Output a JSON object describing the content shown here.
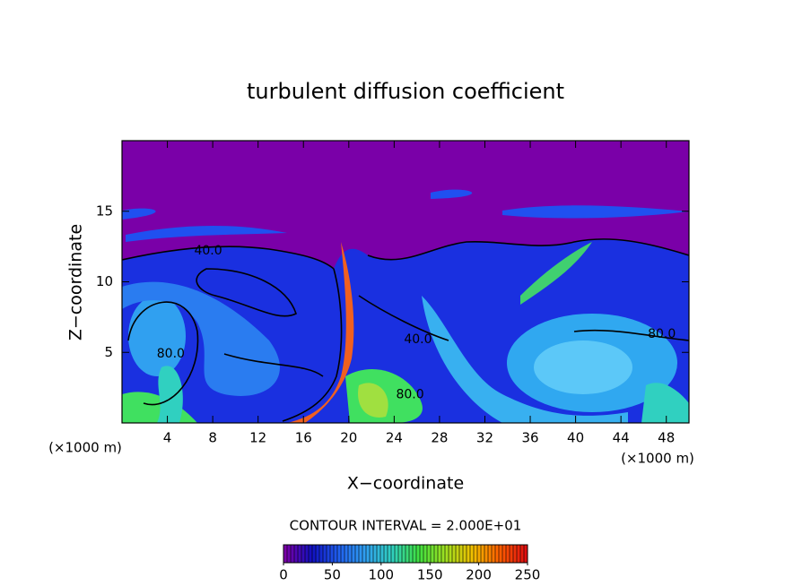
{
  "chart_data": {
    "type": "contour",
    "title": "turbulent diffusion coefficient",
    "x_label": "X−coordinate",
    "y_label": "Z−coordinate",
    "x_unit_left": "(×1000 m)",
    "x_unit_right": "(×1000 m)",
    "contour_interval": "CONTOUR INTERVAL = 2.000E+01",
    "xlim": [
      0,
      50
    ],
    "xticks": [
      4,
      8,
      12,
      16,
      20,
      24,
      28,
      32,
      36,
      40,
      44,
      48
    ],
    "ylim": [
      0,
      20
    ],
    "yticks": [
      5,
      10,
      15
    ],
    "clim": [
      0,
      250
    ],
    "cticks": [
      0,
      50,
      100,
      150,
      200,
      250
    ],
    "colormap": [
      "#7a00a8",
      "#1010c0",
      "#2060f0",
      "#30a0f0",
      "#30d0c0",
      "#40e040",
      "#a0e020",
      "#f0c000",
      "#ff6000",
      "#e01010"
    ],
    "contour_labels": [
      {
        "text": "40.0",
        "x": 7.6,
        "y": 12.2
      },
      {
        "text": "80.0",
        "x": 4.3,
        "y": 4.9
      },
      {
        "text": "40.0",
        "x": 26.1,
        "y": 5.9
      },
      {
        "text": "80.0",
        "x": 25.4,
        "y": 2.0
      },
      {
        "text": "80.0",
        "x": 47.6,
        "y": 6.3
      }
    ]
  }
}
